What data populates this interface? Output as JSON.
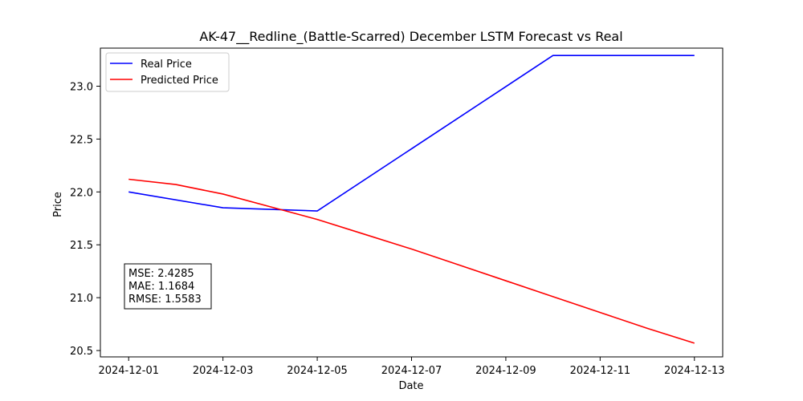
{
  "chart_data": {
    "type": "line",
    "title": "AK-47__Redline_(Battle-Scarred) December LSTM Forecast vs Real",
    "xlabel": "Date",
    "ylabel": "Price",
    "x": [
      "2024-12-01",
      "2024-12-02",
      "2024-12-03",
      "2024-12-04",
      "2024-12-05",
      "2024-12-06",
      "2024-12-07",
      "2024-12-08",
      "2024-12-09",
      "2024-12-10",
      "2024-12-11",
      "2024-12-12",
      "2024-12-13"
    ],
    "xticks": [
      "2024-12-01",
      "2024-12-03",
      "2024-12-05",
      "2024-12-07",
      "2024-12-09",
      "2024-12-11",
      "2024-12-13"
    ],
    "xlim": [
      "2024-11-30",
      "2024-12-13"
    ],
    "ylim": [
      20.44,
      23.36
    ],
    "yticks": [
      20.5,
      21.0,
      21.5,
      22.0,
      22.5,
      23.0
    ],
    "ytick_labels": [
      "20.5",
      "21.0",
      "21.5",
      "22.0",
      "22.5",
      "23.0"
    ],
    "grid": false,
    "legend_position": "top-left",
    "series": [
      {
        "name": "Real Price",
        "color": "#0000ff",
        "x": [
          "2024-12-01",
          "2024-12-03",
          "2024-12-05",
          "2024-12-10",
          "2024-12-13"
        ],
        "values": [
          22.0,
          21.85,
          21.82,
          23.29,
          23.29
        ]
      },
      {
        "name": "Predicted Price",
        "color": "#ff0000",
        "x": [
          "2024-12-01",
          "2024-12-02",
          "2024-12-03",
          "2024-12-04",
          "2024-12-05",
          "2024-12-06",
          "2024-12-07",
          "2024-12-08",
          "2024-12-09",
          "2024-12-10",
          "2024-12-11",
          "2024-12-12",
          "2024-12-13"
        ],
        "values": [
          22.12,
          22.07,
          21.98,
          21.86,
          21.74,
          21.6,
          21.46,
          21.31,
          21.16,
          21.01,
          20.86,
          20.71,
          20.57
        ]
      }
    ],
    "annotations": [
      "MSE: 2.4285",
      "MAE: 1.1684",
      "RMSE: 1.5583"
    ]
  }
}
